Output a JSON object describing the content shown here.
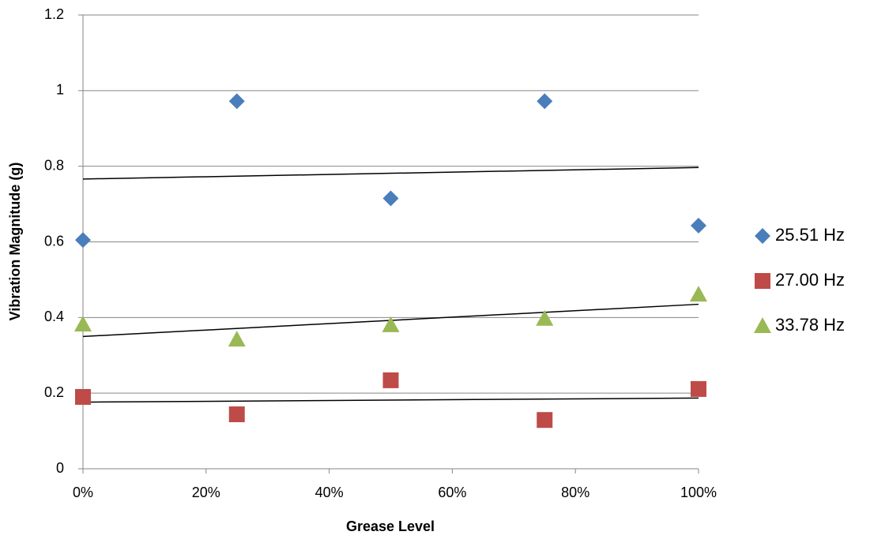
{
  "chart_data": {
    "type": "scatter",
    "x_label": "Grease Level",
    "y_label": "Vibration Magnitude (g)",
    "x": [
      0,
      0.25,
      0.5,
      0.75,
      1
    ],
    "series": [
      {
        "name": "25.51 Hz",
        "color": "#4a7ebb",
        "marker": "diamond",
        "values": [
          0.605,
          0.972,
          0.715,
          0.972,
          0.643
        ]
      },
      {
        "name": "27.00 Hz",
        "color": "#be4b48",
        "marker": "square",
        "values": [
          0.19,
          0.144,
          0.234,
          0.129,
          0.211
        ]
      },
      {
        "name": "33.78 Hz",
        "color": "#98b954",
        "marker": "triangle",
        "values": [
          0.382,
          0.342,
          0.38,
          0.397,
          0.461
        ]
      }
    ],
    "trendline": "linear",
    "xlim": [
      0,
      1
    ],
    "xticks": [
      {
        "value": 0,
        "label": "0%"
      },
      {
        "value": 0.2,
        "label": "20%"
      },
      {
        "value": 0.4,
        "label": "40%"
      },
      {
        "value": 0.6,
        "label": "60%"
      },
      {
        "value": 0.8,
        "label": "80%"
      },
      {
        "value": 1,
        "label": "100%"
      }
    ],
    "ylim": [
      0,
      1.2
    ],
    "yticks": [
      0,
      0.2,
      0.4,
      0.6,
      0.8,
      1,
      1.2
    ],
    "grid": true,
    "legend": "right"
  }
}
